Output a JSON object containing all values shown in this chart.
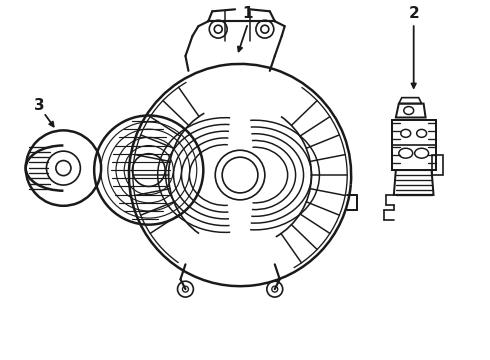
{
  "background_color": "#ffffff",
  "line_color": "#1a1a1a",
  "line_width": 1.2,
  "label1": "1",
  "label2": "2",
  "label3": "3",
  "figsize": [
    4.9,
    3.6
  ],
  "dpi": 100
}
